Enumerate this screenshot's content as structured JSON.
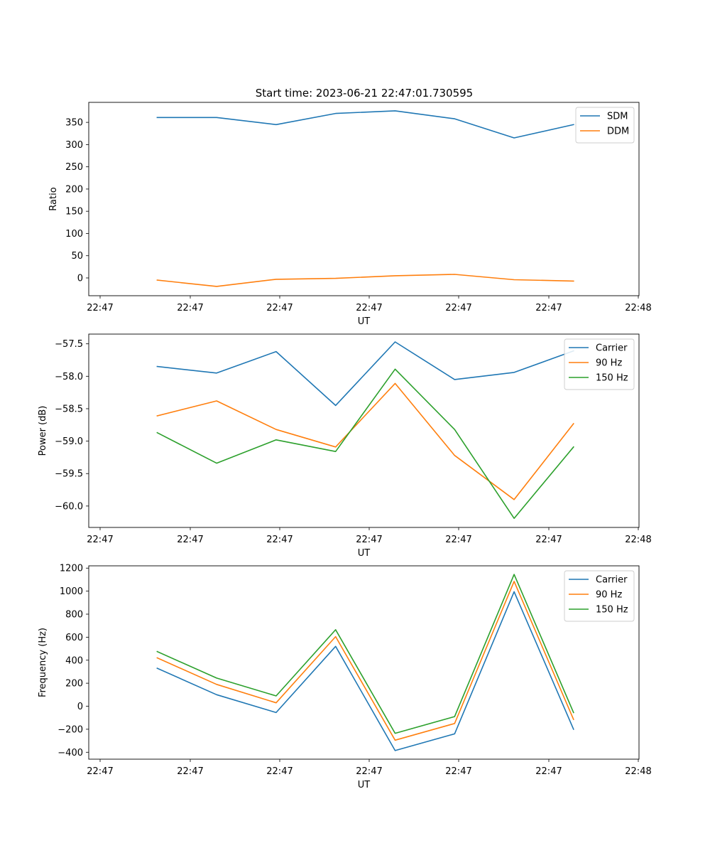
{
  "title": "Start time: 2023-06-21 22:47:01.730595",
  "colors": {
    "blue": "#1f77b4",
    "orange": "#ff7f0e",
    "green": "#2ca02c"
  },
  "chart_data": [
    {
      "type": "line",
      "name": "ratio",
      "xlabel": "UT",
      "ylabel": "Ratio",
      "x_tick_labels": [
        "22:47",
        "22:47",
        "22:47",
        "22:47",
        "22:47",
        "22:47",
        "22:48"
      ],
      "y_ticks": [
        0,
        50,
        100,
        150,
        200,
        250,
        300,
        350
      ],
      "y_tick_labels": [
        "0",
        "50",
        "100",
        "150",
        "200",
        "250",
        "300",
        "350"
      ],
      "ylim": [
        -40,
        395
      ],
      "x": [
        1,
        2,
        3,
        4,
        5,
        6,
        7,
        8
      ],
      "xlim": [
        -0.15,
        9.1
      ],
      "legend_position": "top-right",
      "series": [
        {
          "name": "SDM",
          "color": "#1f77b4",
          "values": [
            361,
            361,
            345,
            370,
            376,
            358,
            315,
            345
          ]
        },
        {
          "name": "DDM",
          "color": "#ff7f0e",
          "values": [
            -5,
            -19,
            -3,
            -1,
            5,
            8,
            -4,
            -7
          ]
        }
      ]
    },
    {
      "type": "line",
      "name": "power",
      "xlabel": "UT",
      "ylabel": "Power (dB)",
      "x_tick_labels": [
        "22:47",
        "22:47",
        "22:47",
        "22:47",
        "22:47",
        "22:47",
        "22:48"
      ],
      "y_ticks": [
        -60.0,
        -59.5,
        -59.0,
        -58.5,
        -58.0,
        -57.5
      ],
      "y_tick_labels": [
        "−60.0",
        "−59.5",
        "−59.0",
        "−58.5",
        "−58.0",
        "−57.5"
      ],
      "ylim": [
        -60.33,
        -57.35
      ],
      "x": [
        1,
        2,
        3,
        4,
        5,
        6,
        7,
        8
      ],
      "xlim": [
        -0.15,
        9.1
      ],
      "legend_position": "top-right",
      "series": [
        {
          "name": "Carrier",
          "color": "#1f77b4",
          "values": [
            -57.85,
            -57.95,
            -57.62,
            -58.45,
            -57.47,
            -58.05,
            -57.94,
            -57.61
          ]
        },
        {
          "name": "90 Hz",
          "color": "#ff7f0e",
          "values": [
            -58.61,
            -58.38,
            -58.82,
            -59.09,
            -58.11,
            -59.22,
            -59.9,
            -58.73
          ]
        },
        {
          "name": "150 Hz",
          "color": "#2ca02c",
          "values": [
            -58.87,
            -59.34,
            -58.98,
            -59.16,
            -57.89,
            -58.82,
            -60.19,
            -59.09
          ]
        }
      ]
    },
    {
      "type": "line",
      "name": "frequency",
      "xlabel": "UT",
      "ylabel": "Frequency (Hz)",
      "x_tick_labels": [
        "22:47",
        "22:47",
        "22:47",
        "22:47",
        "22:47",
        "22:47",
        "22:48"
      ],
      "y_ticks": [
        -400,
        -200,
        0,
        200,
        400,
        600,
        800,
        1000,
        1200
      ],
      "y_tick_labels": [
        "−400",
        "−200",
        "0",
        "200",
        "400",
        "600",
        "800",
        "1000",
        "1200"
      ],
      "ylim": [
        -460,
        1220
      ],
      "x": [
        1,
        2,
        3,
        4,
        5,
        6,
        7,
        8
      ],
      "xlim": [
        -0.15,
        9.1
      ],
      "legend_position": "top-right",
      "series": [
        {
          "name": "Carrier",
          "color": "#1f77b4",
          "values": [
            330,
            100,
            -55,
            520,
            -385,
            -240,
            995,
            -200
          ]
        },
        {
          "name": "90 Hz",
          "color": "#ff7f0e",
          "values": [
            420,
            190,
            30,
            605,
            -295,
            -150,
            1085,
            -115
          ]
        },
        {
          "name": "150 Hz",
          "color": "#2ca02c",
          "values": [
            475,
            245,
            90,
            665,
            -235,
            -90,
            1145,
            -55
          ]
        }
      ]
    }
  ]
}
